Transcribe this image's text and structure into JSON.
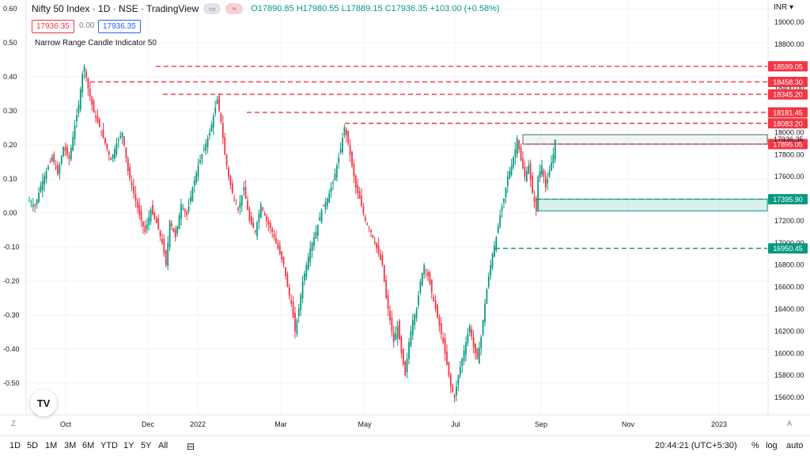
{
  "header": {
    "symbol": "Nifty 50 Index · 1D · NSE · TradingView",
    "ohlc": "O17890.85 H17980.55 L17889.15 C17936.35 +103.00 (+0.58%)",
    "sell_price": "17936.35",
    "spread": "0.00",
    "buy_price": "17936.35",
    "indicator": "Narrow Range Candle Indicator 50"
  },
  "currency": "INR",
  "left_axis_ticks": [
    "0.60",
    "0.50",
    "0.40",
    "0.30",
    "0.20",
    "0.10",
    "0.00",
    "-0.10",
    "-0.20",
    "-0.30",
    "-0.40",
    "-0.50"
  ],
  "right_axis_ticks": [
    "19000.00",
    "18800.00",
    "18600.00",
    "18400.00",
    "18200.00",
    "18000.00",
    "17800.00",
    "17600.00",
    "17400.00",
    "17200.00",
    "17000.00",
    "16800.00",
    "16600.00",
    "16400.00",
    "16200.00",
    "16000.00",
    "15800.00",
    "15600.00"
  ],
  "bottom_bar": {
    "ranges": [
      "1D",
      "5D",
      "1M",
      "3M",
      "6M",
      "YTD",
      "1Y",
      "5Y",
      "All"
    ],
    "time": "20:44:21 (UTC+5:30)",
    "percent": "%",
    "log": "log",
    "auto": "auto"
  },
  "colors": {
    "up": "#089981",
    "down": "#f23645",
    "resistance": "#f23645",
    "support": "#089981"
  },
  "chart_data": {
    "type": "candlestick",
    "title": "Nifty 50 Index · 1D · NSE · TradingView",
    "x_labels": [
      "Oct",
      "Dec",
      "2022",
      "Mar",
      "May",
      "Jul",
      "Sep",
      "Nov",
      "2023"
    ],
    "ylim_right": [
      15450,
      19200
    ],
    "ylim_left": [
      -0.55,
      0.62
    ],
    "last_price": 17936.35,
    "price_path": [
      [
        0,
        17380
      ],
      [
        3,
        17330
      ],
      [
        6,
        17520
      ],
      [
        9,
        17650
      ],
      [
        12,
        17780
      ],
      [
        15,
        17620
      ],
      [
        18,
        17870
      ],
      [
        21,
        17760
      ],
      [
        24,
        18060
      ],
      [
        26,
        18250
      ],
      [
        28,
        18530
      ],
      [
        29,
        18600
      ],
      [
        31,
        18400
      ],
      [
        34,
        18180
      ],
      [
        37,
        18050
      ],
      [
        40,
        17900
      ],
      [
        43,
        17750
      ],
      [
        46,
        17900
      ],
      [
        49,
        18000
      ],
      [
        52,
        17650
      ],
      [
        55,
        17450
      ],
      [
        58,
        17250
      ],
      [
        61,
        17100
      ],
      [
        64,
        17300
      ],
      [
        67,
        17180
      ],
      [
        70,
        17000
      ],
      [
        72,
        16800
      ],
      [
        74,
        17200
      ],
      [
        77,
        17050
      ],
      [
        80,
        17350
      ],
      [
        83,
        17250
      ],
      [
        86,
        17500
      ],
      [
        89,
        17700
      ],
      [
        92,
        17850
      ],
      [
        95,
        18000
      ],
      [
        97,
        18150
      ],
      [
        99,
        18300
      ],
      [
        101,
        18100
      ],
      [
        103,
        17800
      ],
      [
        105,
        17600
      ],
      [
        107,
        17450
      ],
      [
        110,
        17300
      ],
      [
        113,
        17500
      ],
      [
        116,
        17200
      ],
      [
        119,
        17100
      ],
      [
        122,
        17350
      ],
      [
        125,
        17200
      ],
      [
        128,
        17100
      ],
      [
        131,
        16950
      ],
      [
        134,
        16800
      ],
      [
        136,
        16600
      ],
      [
        138,
        16450
      ],
      [
        140,
        16200
      ],
      [
        142,
        16400
      ],
      [
        144,
        16650
      ],
      [
        146,
        16800
      ],
      [
        148,
        16950
      ],
      [
        151,
        17100
      ],
      [
        154,
        17300
      ],
      [
        157,
        17400
      ],
      [
        160,
        17550
      ],
      [
        162,
        17700
      ],
      [
        164,
        17850
      ],
      [
        166,
        18050
      ],
      [
        168,
        17900
      ],
      [
        170,
        17700
      ],
      [
        172,
        17500
      ],
      [
        174,
        17400
      ],
      [
        177,
        17200
      ],
      [
        180,
        17100
      ],
      [
        183,
        16950
      ],
      [
        186,
        16800
      ],
      [
        188,
        16500
      ],
      [
        190,
        16300
      ],
      [
        192,
        16100
      ],
      [
        194,
        16250
      ],
      [
        196,
        16000
      ],
      [
        198,
        15800
      ],
      [
        200,
        16100
      ],
      [
        202,
        16300
      ],
      [
        204,
        16400
      ],
      [
        206,
        16650
      ],
      [
        208,
        16800
      ],
      [
        210,
        16700
      ],
      [
        212,
        16550
      ],
      [
        214,
        16400
      ],
      [
        216,
        16250
      ],
      [
        218,
        16100
      ],
      [
        220,
        15900
      ],
      [
        222,
        15700
      ],
      [
        224,
        15600
      ],
      [
        226,
        15800
      ],
      [
        228,
        15950
      ],
      [
        230,
        16100
      ],
      [
        232,
        16250
      ],
      [
        234,
        16050
      ],
      [
        236,
        15950
      ],
      [
        238,
        16150
      ],
      [
        240,
        16450
      ],
      [
        242,
        16700
      ],
      [
        244,
        16900
      ],
      [
        246,
        17050
      ],
      [
        248,
        17250
      ],
      [
        250,
        17400
      ],
      [
        252,
        17600
      ],
      [
        254,
        17700
      ],
      [
        256,
        17850
      ],
      [
        257,
        17950
      ],
      [
        259,
        17750
      ],
      [
        261,
        17600
      ],
      [
        263,
        17700
      ],
      [
        265,
        17450
      ],
      [
        267,
        17300
      ],
      [
        268,
        17600
      ],
      [
        270,
        17700
      ],
      [
        272,
        17500
      ],
      [
        274,
        17650
      ],
      [
        276,
        17800
      ],
      [
        277,
        17936
      ]
    ],
    "resistance_levels": [
      18599.05,
      18458.3,
      18345.2,
      18181.45,
      18083.2,
      17895.05
    ],
    "support_levels": [
      17395.9,
      16950.45
    ],
    "resistance_zone": [
      17895.05,
      17980.55
    ],
    "support_zone": [
      17395.9,
      17290.0
    ]
  }
}
